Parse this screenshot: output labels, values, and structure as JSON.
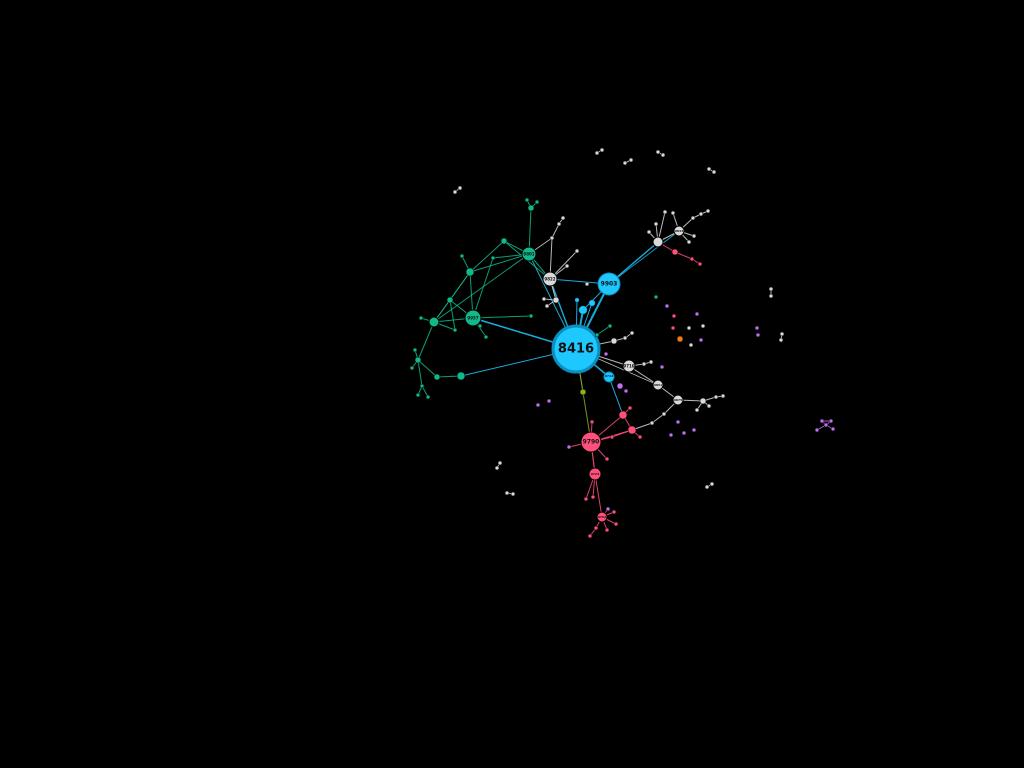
{
  "graph": {
    "background": "#000000",
    "colors": {
      "cyan": "#1ec8ff",
      "cyan_dark": "#0a8fc0",
      "green": "#10b88a",
      "pink": "#ff4f7b",
      "gray": "#d9d9d9",
      "purple": "#c070f0",
      "orange": "#f07a10",
      "olive": "#88b020"
    },
    "labels": {
      "hub": "8416",
      "n9903": "9903",
      "n9790": "9790",
      "green_a": "9801",
      "green_b": "9957",
      "gray_a": "9822",
      "gray_b": "9716",
      "gray_c": "9851",
      "gray_d": "9875",
      "gray_e": "9843",
      "pink_a": "9722",
      "pink_b": "9762",
      "cyan_s": "9712"
    }
  }
}
